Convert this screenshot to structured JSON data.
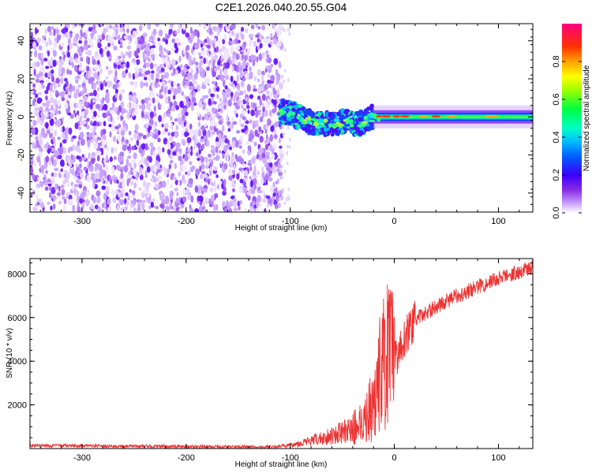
{
  "figure": {
    "title": "C2E1.2026.040.20.55.G04"
  },
  "chart_data": [
    {
      "type": "heatmap",
      "title": "C2E1.2026.040.20.55.G04",
      "xlabel": "Height of straight line (km)",
      "ylabel": "Frequency (Hz)",
      "xlim": [
        -350,
        133
      ],
      "ylim": [
        -50,
        49
      ],
      "xticks": [
        -300,
        -200,
        -100,
        0,
        100
      ],
      "yticks": [
        -40,
        -20,
        0,
        20,
        40
      ],
      "xtick_labels": [
        "-300",
        "-200",
        "-100",
        "0",
        "100"
      ],
      "ytick_labels": [
        "-40",
        "-20",
        "0",
        "20",
        "40"
      ],
      "colorbar": {
        "label": "Normalized spectral amplitude",
        "range": [
          0,
          1
        ],
        "ticks": [
          0.0,
          0.2,
          0.4,
          0.6,
          0.8
        ],
        "tick_labels": [
          "0.0",
          "0.2",
          "0.4",
          "0.6",
          "0.8"
        ]
      },
      "description_points": {
        "noise_region_x": [
          -350,
          -110
        ],
        "signal_start_x": -110,
        "signal_path": [
          {
            "x": -200,
            "y": 1
          },
          {
            "x": -150,
            "y": 0
          },
          {
            "x": -120,
            "y": 4
          },
          {
            "x": -100,
            "y": 2
          },
          {
            "x": -80,
            "y": -3
          },
          {
            "x": -60,
            "y": -4
          },
          {
            "x": -45,
            "y": -2
          },
          {
            "x": -35,
            "y": -4
          },
          {
            "x": -20,
            "y": 0
          },
          {
            "x": 0,
            "y": 0
          },
          {
            "x": 50,
            "y": 0
          },
          {
            "x": 133,
            "y": 0
          }
        ]
      }
    },
    {
      "type": "line",
      "xlabel": "Height of straight line (km)",
      "ylabel": "SNR (10 * v/v)",
      "xlim": [
        -350,
        133
      ],
      "ylim": [
        0,
        8700
      ],
      "xticks": [
        -300,
        -200,
        -100,
        0,
        100
      ],
      "yticks": [
        2000,
        4000,
        6000,
        8000
      ],
      "xtick_labels": [
        "-300",
        "-200",
        "-100",
        "0",
        "100"
      ],
      "ytick_labels": [
        "2000",
        "4000",
        "6000",
        "8000"
      ],
      "series": [
        {
          "name": "SNR",
          "color": "#ee3333",
          "x": [
            -350,
            -300,
            -250,
            -200,
            -150,
            -120,
            -100,
            -80,
            -60,
            -40,
            -30,
            -20,
            -15,
            -10,
            -5,
            0,
            10,
            20,
            40,
            60,
            80,
            100,
            120,
            133
          ],
          "y": [
            150,
            120,
            100,
            90,
            80,
            70,
            150,
            350,
            600,
            900,
            1300,
            2000,
            3200,
            4000,
            4200,
            4000,
            5100,
            5900,
            6500,
            7000,
            7400,
            7800,
            8100,
            8300
          ]
        }
      ]
    }
  ]
}
